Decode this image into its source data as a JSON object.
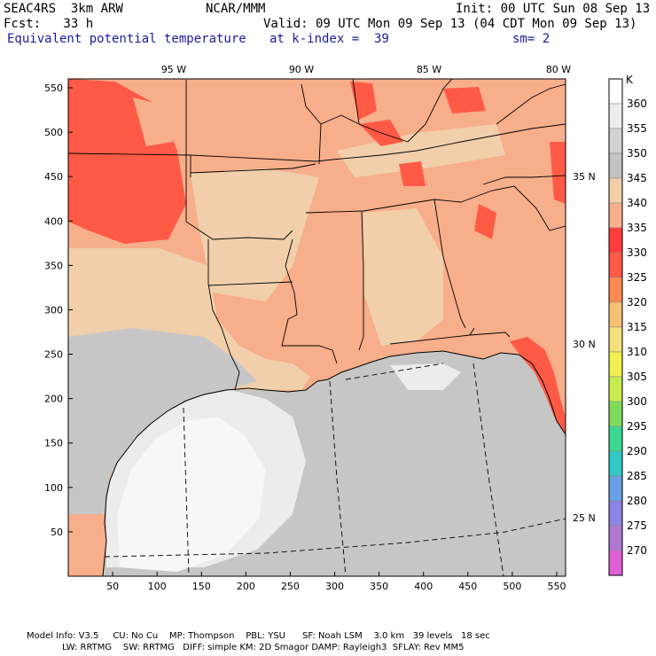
{
  "header": {
    "model": "SEAC4RS  3km ARW",
    "org": "NCAR/MMM",
    "init": "Init: 00 UTC Sun 08 Sep 13",
    "fcst": "Fcst:   33 h",
    "valid": "Valid: 09 UTC Mon 09 Sep 13 (04 CDT Mon 09 Sep 13)",
    "field": "Equivalent potential temperature",
    "level": "at k-index =  39",
    "smooth": "sm= 2"
  },
  "axes": {
    "x_ticks": [
      "50",
      "100",
      "150",
      "200",
      "250",
      "300",
      "350",
      "400",
      "450",
      "500",
      "550"
    ],
    "y_ticks": [
      "50",
      "100",
      "150",
      "200",
      "250",
      "300",
      "350",
      "400",
      "450",
      "500",
      "550"
    ],
    "lon_labels": [
      "95 W",
      "90 W",
      "85 W",
      "80 W"
    ],
    "lat_labels": [
      "35 N",
      "30 N",
      "25 N"
    ]
  },
  "colorbar": {
    "unit": "K",
    "levels": [
      {
        "value": "360",
        "color": "#ffffff"
      },
      {
        "value": "355",
        "color": "#ececec"
      },
      {
        "value": "350",
        "color": "#d2d2d2"
      },
      {
        "value": "345",
        "color": "#c3c3c3"
      },
      {
        "value": "340",
        "color": "#f0cfaa"
      },
      {
        "value": "335",
        "color": "#f7ae8b"
      },
      {
        "value": "330",
        "color": "#ff3c3c"
      },
      {
        "value": "325",
        "color": "#ff5a46"
      },
      {
        "value": "320",
        "color": "#ff8a50"
      },
      {
        "value": "315",
        "color": "#f7c070"
      },
      {
        "value": "310",
        "color": "#f5df7a"
      },
      {
        "value": "305",
        "color": "#f0f050"
      },
      {
        "value": "300",
        "color": "#c8ec50"
      },
      {
        "value": "295",
        "color": "#7edc5a"
      },
      {
        "value": "290",
        "color": "#3cd890"
      },
      {
        "value": "285",
        "color": "#30c8c8"
      },
      {
        "value": "280",
        "color": "#6aa0e6"
      },
      {
        "value": "275",
        "color": "#8a84e4"
      },
      {
        "value": "270",
        "color": "#b078d0"
      },
      {
        "value": "",
        "color": "#e060d8"
      }
    ]
  },
  "footer": {
    "line1": "Model Info: V3.5     CU: No Cu    MP: Thompson    PBL: YSU      SF: Noah LSM    3.0 km   39 levels   18 sec",
    "line2": "LW: RRTMG    SW: RRTMG   DIFF: simple KM: 2D Smagor DAMP: Rayleigh3  SFLAY: Rev MM5"
  },
  "map": {
    "colors": {
      "ocean_gray": "#c6c6c6",
      "ocean_light": "#ececec",
      "ocean_white": "#f7f7f7",
      "land_tan": "#f0cfaa",
      "land_salmon": "#f7ae8b",
      "land_red": "#ff5a46",
      "land_hot": "#ff3c3c"
    }
  }
}
